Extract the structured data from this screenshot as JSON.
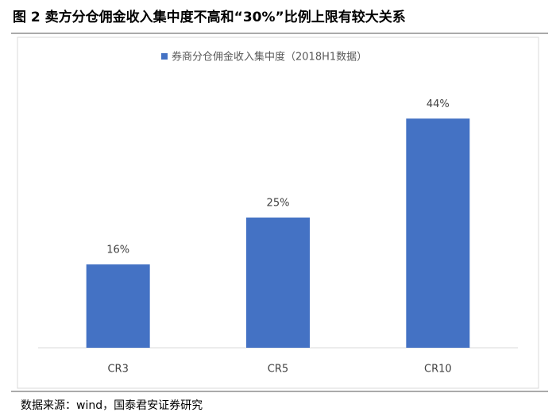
{
  "chart_data": {
    "type": "bar",
    "title": "图 2 卖方分仓佣金收入集中度不高和“30%”比例上限有较大关系",
    "source": "数据来源：wind，国泰君安证券研究",
    "categories": [
      "CR3",
      "CR5",
      "CR10"
    ],
    "series": [
      {
        "name": "券商分仓佣金收入集中度（2018H1数据）",
        "color": "#4472c4",
        "values": [
          16,
          25,
          44
        ],
        "value_labels": [
          "16%",
          "25%",
          "44%"
        ]
      }
    ],
    "ylim": [
      0,
      50
    ]
  }
}
